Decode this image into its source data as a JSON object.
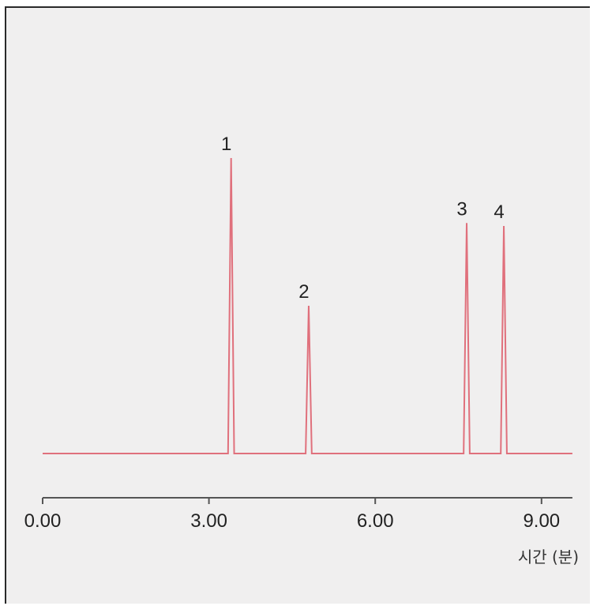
{
  "chart_data": {
    "type": "line",
    "xlabel": "시간 (분)",
    "ylabel": "",
    "xlim": [
      0,
      9.5
    ],
    "x_ticks": [
      "0.00",
      "3.00",
      "6.00",
      "9.00"
    ],
    "x_tick_values": [
      0,
      3,
      6,
      9
    ],
    "grid": false,
    "peaks": [
      {
        "label": "1",
        "retention_time": 3.4,
        "relative_height": 1.0
      },
      {
        "label": "2",
        "retention_time": 4.8,
        "relative_height": 0.5
      },
      {
        "label": "3",
        "retention_time": 7.65,
        "relative_height": 0.78
      },
      {
        "label": "4",
        "retention_time": 8.32,
        "relative_height": 0.77
      }
    ],
    "colors": {
      "trace": "#e0707c",
      "axis": "#555555",
      "background": "#f0efef"
    }
  }
}
